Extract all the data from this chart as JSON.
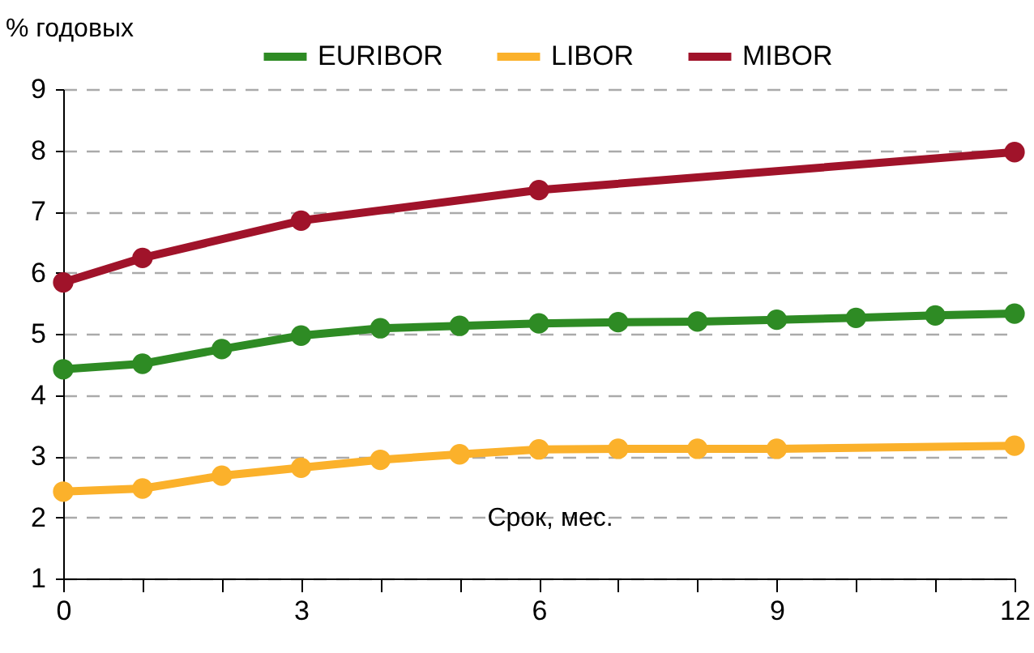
{
  "chart_data": {
    "type": "line",
    "ylabel": "% годовых",
    "xlabel": "Срок, мес.",
    "xlim": [
      0,
      12
    ],
    "ylim": [
      1,
      9
    ],
    "xticks": [
      0,
      {
        "value": 1,
        "label": null
      },
      {
        "value": 2,
        "label": null
      },
      3,
      {
        "value": 4,
        "label": null
      },
      {
        "value": 5,
        "label": null
      },
      6,
      {
        "value": 7,
        "label": null
      },
      {
        "value": 8,
        "label": null
      },
      9,
      {
        "value": 10,
        "label": null
      },
      {
        "value": 11,
        "label": null
      },
      12
    ],
    "yticks": [
      1,
      2,
      3,
      4,
      5,
      6,
      7,
      8,
      9
    ],
    "grid": "y",
    "legend": "top",
    "marker": "circle",
    "line_style": "solid",
    "series": [
      {
        "name": "EURIBOR",
        "color": "#2e8b24",
        "x": [
          0,
          1,
          2,
          3,
          4,
          5,
          6,
          7,
          8,
          9,
          10,
          11,
          12
        ],
        "values": [
          4.42,
          4.51,
          4.75,
          4.97,
          5.09,
          5.13,
          5.17,
          5.19,
          5.2,
          5.23,
          5.26,
          5.3,
          5.33
        ]
      },
      {
        "name": "LIBOR",
        "color": "#fbb12b",
        "x": [
          0,
          1,
          2,
          3,
          4,
          5,
          6,
          7,
          8,
          9,
          12
        ],
        "values": [
          2.42,
          2.47,
          2.68,
          2.81,
          2.94,
          3.03,
          3.11,
          3.12,
          3.12,
          3.12,
          3.17
        ]
      },
      {
        "name": "MIBOR",
        "color": "#a0132a",
        "x": [
          0,
          1,
          3,
          6,
          12
        ],
        "values": [
          5.84,
          6.24,
          6.85,
          7.35,
          7.97
        ]
      }
    ]
  }
}
